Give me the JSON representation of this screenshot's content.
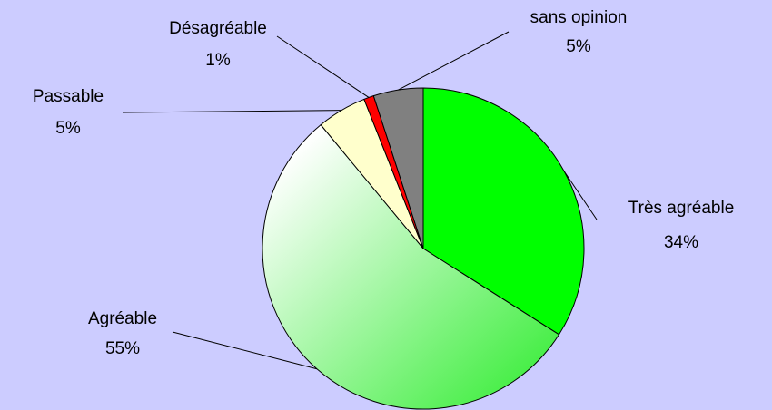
{
  "chart_data": {
    "type": "pie",
    "categories": [
      "Très agréable",
      "Agréable",
      "Passable",
      "Désagréable",
      "sans opinion"
    ],
    "values": [
      34,
      55,
      5,
      1,
      5
    ],
    "value_labels": [
      "34%",
      "55%",
      "5%",
      "1%",
      "5%"
    ],
    "colors": [
      "#00ff00",
      {
        "gradient": [
          "#ffffff",
          "#44ee44"
        ]
      },
      "#ffffcc",
      "#ff0000",
      "#808080"
    ]
  }
}
